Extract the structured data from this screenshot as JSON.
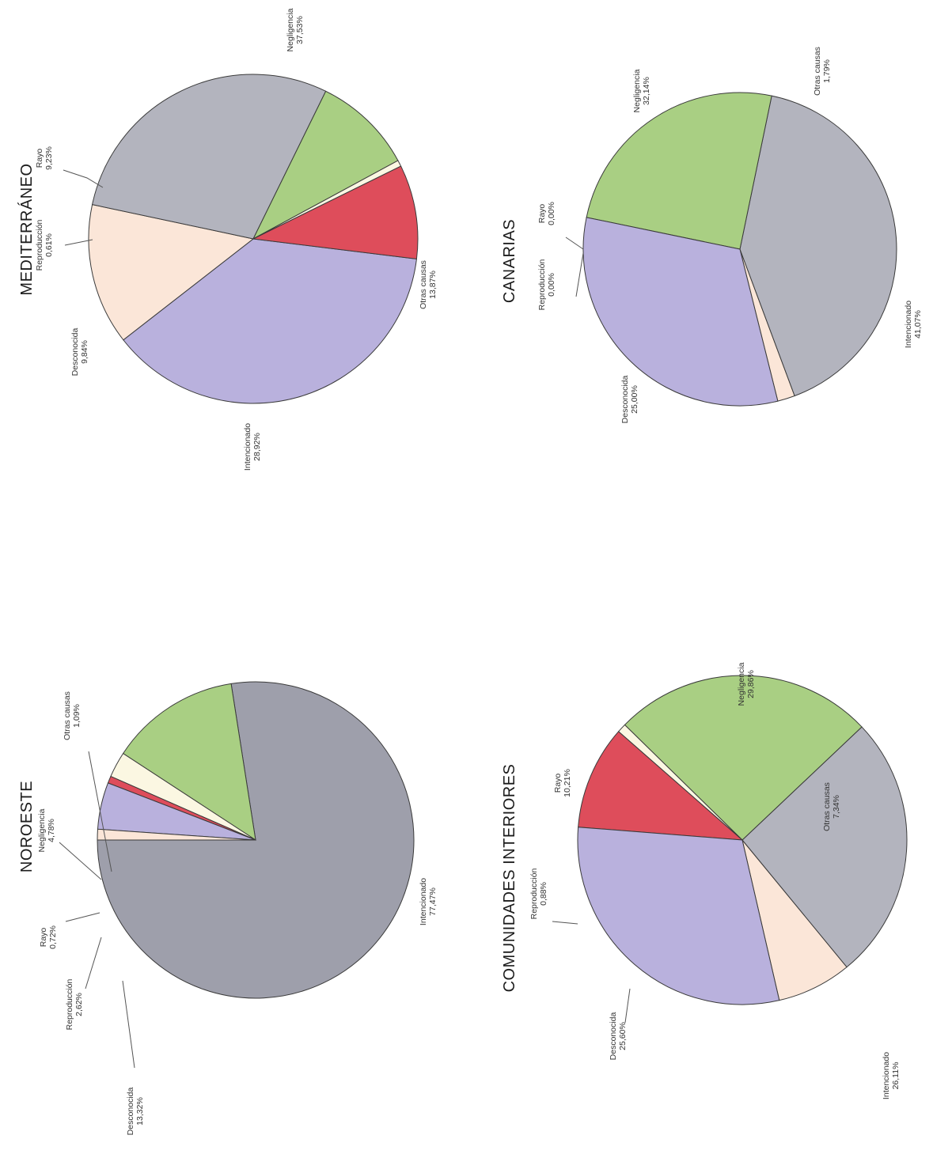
{
  "chart_data": [
    {
      "type": "pie",
      "title": "MEDITERRÁNEO",
      "categories": [
        "Negligencia",
        "Otras causas",
        "Intencionado",
        "Desconocida",
        "Reproducción",
        "Rayo"
      ],
      "values": [
        37.53,
        13.87,
        28.92,
        9.84,
        0.61,
        9.23
      ],
      "value_labels": [
        "37,53%",
        "13,87%",
        "28,92%",
        "9,84%",
        "0,61%",
        "9,23%"
      ],
      "colors": [
        "#b9b1dd",
        "#fbe6d8",
        "#b3b4be",
        "#a9cf83",
        "#fbf7e2",
        "#de4d5b"
      ]
    },
    {
      "type": "pie",
      "title": "CANARIAS",
      "categories": [
        "Otras causas",
        "Intencionado",
        "Desconocida",
        "Reproducción",
        "Rayo",
        "Negligencia"
      ],
      "values": [
        1.79,
        41.07,
        25.0,
        0.0,
        0.0,
        32.14
      ],
      "value_labels": [
        "1,79%",
        "41,07%",
        "25,00%",
        "0,00%",
        "0,00%",
        "32,14%"
      ],
      "colors": [
        "#fbe6d8",
        "#b3b4be",
        "#a9cf83",
        "#fbf7e2",
        "#de4d5b",
        "#b9b1dd"
      ]
    },
    {
      "type": "pie",
      "title": "NOROESTE",
      "categories": [
        "Intencionado",
        "Desconocida",
        "Reproducción",
        "Rayo",
        "Negligencia",
        "Otras causas"
      ],
      "values": [
        77.47,
        13.32,
        2.62,
        0.72,
        4.78,
        1.09
      ],
      "value_labels": [
        "77,47%",
        "13,32%",
        "2,62%",
        "0,72%",
        "4,78%",
        "1,09%"
      ],
      "colors": [
        "#9e9fab",
        "#a9cf83",
        "#fbf7e2",
        "#de4d5b",
        "#b9b1dd",
        "#fbe6d8"
      ]
    },
    {
      "type": "pie",
      "title": "COMUNIDADES INTERIORES",
      "categories": [
        "Otras causas",
        "Intencionado",
        "Desconocida",
        "Reproducción",
        "Rayo",
        "Negligencia"
      ],
      "values": [
        7.34,
        26.11,
        25.6,
        0.88,
        10.21,
        29.86
      ],
      "value_labels": [
        "7,34%",
        "26,11%",
        "25,60%",
        "0,88%",
        "10,21%",
        "29,86%"
      ],
      "colors": [
        "#fbe6d8",
        "#b3b4be",
        "#a9cf83",
        "#fbf7e2",
        "#de4d5b",
        "#b9b1dd"
      ]
    }
  ]
}
